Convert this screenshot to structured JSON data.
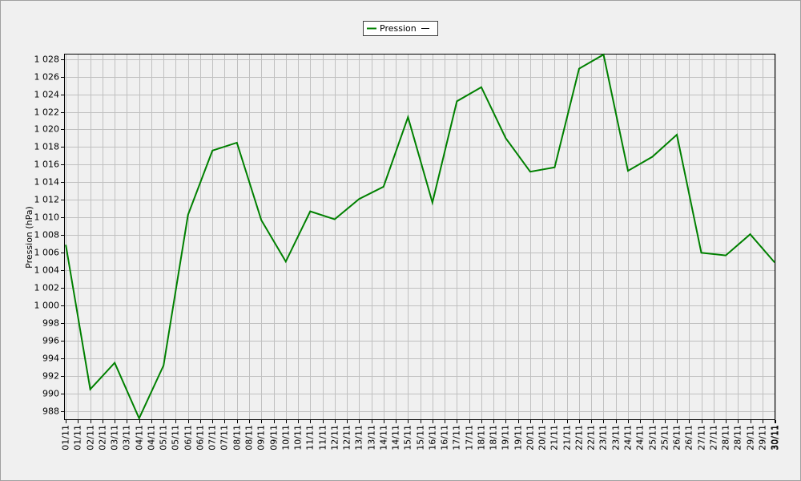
{
  "chart_data": {
    "type": "line",
    "y_label": "Pression (hPa)",
    "x": [
      1,
      2,
      3,
      4,
      5,
      6,
      7,
      8,
      9,
      10,
      11,
      12,
      13,
      14,
      15,
      16,
      17,
      18,
      19,
      20,
      21,
      22,
      23,
      24,
      25,
      26,
      27,
      28,
      29,
      30
    ],
    "xlim": [
      0.93,
      30.03
    ],
    "xticks": [
      {
        "value": 1,
        "label": "01/11"
      },
      {
        "value": 1.5,
        "label": "01/11"
      },
      {
        "value": 2,
        "label": "02/11"
      },
      {
        "value": 2.5,
        "label": "02/11"
      },
      {
        "value": 3,
        "label": "03/11"
      },
      {
        "value": 3.5,
        "label": "03/11"
      },
      {
        "value": 4,
        "label": "04/11"
      },
      {
        "value": 4.5,
        "label": "04/11"
      },
      {
        "value": 5,
        "label": "05/11"
      },
      {
        "value": 5.5,
        "label": "05/11"
      },
      {
        "value": 6,
        "label": "06/11"
      },
      {
        "value": 6.5,
        "label": "06/11"
      },
      {
        "value": 7,
        "label": "07/11"
      },
      {
        "value": 7.5,
        "label": "07/11"
      },
      {
        "value": 8,
        "label": "08/11"
      },
      {
        "value": 8.5,
        "label": "08/11"
      },
      {
        "value": 9,
        "label": "09/11"
      },
      {
        "value": 9.5,
        "label": "09/11"
      },
      {
        "value": 10,
        "label": "10/11"
      },
      {
        "value": 10.5,
        "label": "10/11"
      },
      {
        "value": 11,
        "label": "11/11"
      },
      {
        "value": 11.5,
        "label": "11/11"
      },
      {
        "value": 12,
        "label": "12/11"
      },
      {
        "value": 12.5,
        "label": "12/11"
      },
      {
        "value": 13,
        "label": "13/11"
      },
      {
        "value": 13.5,
        "label": "13/11"
      },
      {
        "value": 14,
        "label": "14/11"
      },
      {
        "value": 14.5,
        "label": "14/11"
      },
      {
        "value": 15,
        "label": "15/11"
      },
      {
        "value": 15.5,
        "label": "15/11"
      },
      {
        "value": 16,
        "label": "16/11"
      },
      {
        "value": 16.5,
        "label": "16/11"
      },
      {
        "value": 17,
        "label": "17/11"
      },
      {
        "value": 17.5,
        "label": "17/11"
      },
      {
        "value": 18,
        "label": "18/11"
      },
      {
        "value": 18.5,
        "label": "18/11"
      },
      {
        "value": 19,
        "label": "19/11"
      },
      {
        "value": 19.5,
        "label": "19/11"
      },
      {
        "value": 20,
        "label": "20/11"
      },
      {
        "value": 20.5,
        "label": "20/11"
      },
      {
        "value": 21,
        "label": "21/11"
      },
      {
        "value": 21.5,
        "label": "21/11"
      },
      {
        "value": 22,
        "label": "22/11"
      },
      {
        "value": 22.5,
        "label": "22/11"
      },
      {
        "value": 23,
        "label": "23/11"
      },
      {
        "value": 23.5,
        "label": "23/11"
      },
      {
        "value": 24,
        "label": "24/11"
      },
      {
        "value": 24.5,
        "label": "24/11"
      },
      {
        "value": 25,
        "label": "25/11"
      },
      {
        "value": 25.5,
        "label": "25/11"
      },
      {
        "value": 26,
        "label": "26/11"
      },
      {
        "value": 26.5,
        "label": "26/11"
      },
      {
        "value": 27,
        "label": "27/11"
      },
      {
        "value": 27.5,
        "label": "27/11"
      },
      {
        "value": 28,
        "label": "28/11"
      },
      {
        "value": 28.5,
        "label": "28/11"
      },
      {
        "value": 29,
        "label": "29/11"
      },
      {
        "value": 29.5,
        "label": "29/11"
      },
      {
        "value": 30,
        "label": "30/11"
      },
      {
        "value": 30.03,
        "label": "30/11"
      }
    ],
    "ylim": [
      987,
      1028.6
    ],
    "yticks": [
      988,
      990,
      992,
      994,
      996,
      998,
      {
        "value": 1000,
        "label": "1 000"
      },
      {
        "value": 1002,
        "label": "1 002"
      },
      {
        "value": 1004,
        "label": "1 004"
      },
      {
        "value": 1006,
        "label": "1 006"
      },
      {
        "value": 1008,
        "label": "1 008"
      },
      {
        "value": 1010,
        "label": "1 010"
      },
      {
        "value": 1012,
        "label": "1 012"
      },
      {
        "value": 1014,
        "label": "1 014"
      },
      {
        "value": 1016,
        "label": "1 016"
      },
      {
        "value": 1018,
        "label": "1 018"
      },
      {
        "value": 1020,
        "label": "1 020"
      },
      {
        "value": 1022,
        "label": "1 022"
      },
      {
        "value": 1024,
        "label": "1 024"
      },
      {
        "value": 1026,
        "label": "1 026"
      },
      {
        "value": 1028,
        "label": "1 028"
      }
    ],
    "grid": true,
    "series": [
      {
        "name": "Pression",
        "color": "#008000",
        "values": [
          1006.9,
          990.5,
          993.5,
          987.2,
          993.2,
          1010.3,
          1017.6,
          1018.5,
          1009.7,
          1005.0,
          1010.7,
          1009.8,
          1012.1,
          1013.5,
          1021.4,
          1011.7,
          1023.2,
          1024.8,
          1019.0,
          1015.2,
          1015.7,
          1026.9,
          1028.5,
          1015.3,
          1016.9,
          1019.4,
          1006.0,
          1005.7,
          1008.1,
          1004.9
        ]
      }
    ]
  }
}
